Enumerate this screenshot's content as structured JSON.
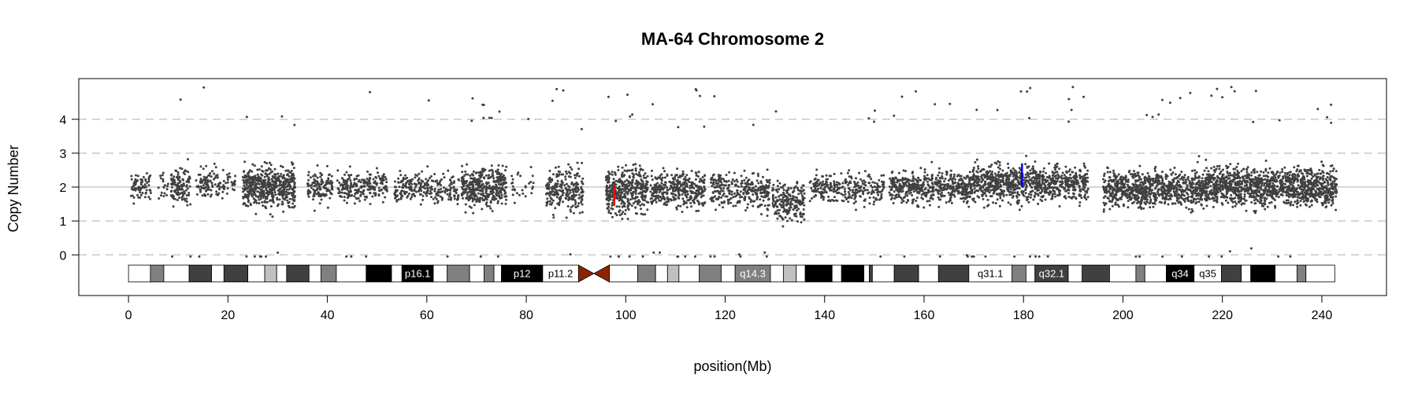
{
  "chart_data": {
    "type": "scatter",
    "title": "MA-64  Chromosome 2",
    "xlabel": "position(Mb)",
    "ylabel": "Copy Number",
    "xlim": [
      -10,
      253
    ],
    "ylim": [
      -1.2,
      5.2
    ],
    "xticks": [
      "0",
      "20",
      "40",
      "60",
      "80",
      "100",
      "120",
      "140",
      "160",
      "180",
      "200",
      "220",
      "240"
    ],
    "yticks": [
      "0",
      "1",
      "2",
      "3",
      "4"
    ],
    "grid": {
      "dashed_lines_at": [
        0,
        1,
        3,
        4
      ],
      "solid_line_at": 2
    },
    "point_color": "#404040",
    "baseline_copy_number": 2,
    "segments": [
      {
        "start": 0.5,
        "end": 4.5,
        "center": 2.0,
        "spread": 0.35,
        "density": 0.6
      },
      {
        "start": 6,
        "end": 8,
        "center": 2.1,
        "spread": 0.4,
        "density": 0.3
      },
      {
        "start": 8.5,
        "end": 12.5,
        "center": 2.0,
        "spread": 0.4,
        "density": 1.0
      },
      {
        "start": 13.5,
        "end": 21.5,
        "center": 2.1,
        "spread": 0.35,
        "density": 0.5
      },
      {
        "start": 23,
        "end": 33.5,
        "center": 2.0,
        "spread": 0.55,
        "density": 1.6
      },
      {
        "start": 36,
        "end": 41,
        "center": 2.0,
        "spread": 0.4,
        "density": 0.8
      },
      {
        "start": 42,
        "end": 52,
        "center": 2.0,
        "spread": 0.35,
        "density": 0.7
      },
      {
        "start": 53.5,
        "end": 66.5,
        "center": 1.95,
        "spread": 0.4,
        "density": 0.6
      },
      {
        "start": 67,
        "end": 76,
        "center": 2.0,
        "spread": 0.5,
        "density": 1.4
      },
      {
        "start": 77,
        "end": 81.5,
        "center": 2.0,
        "spread": 0.4,
        "density": 0.2
      },
      {
        "start": 84,
        "end": 91.5,
        "center": 1.9,
        "spread": 0.55,
        "density": 1.0
      },
      {
        "start": 96,
        "end": 104.5,
        "center": 1.9,
        "spread": 0.6,
        "density": 1.5
      },
      {
        "start": 105,
        "end": 116,
        "center": 1.9,
        "spread": 0.45,
        "density": 1.1
      },
      {
        "start": 117,
        "end": 129,
        "center": 1.9,
        "spread": 0.5,
        "density": 0.8
      },
      {
        "start": 129.5,
        "end": 136,
        "center": 1.6,
        "spread": 0.5,
        "density": 1.0
      },
      {
        "start": 137,
        "end": 152,
        "center": 1.95,
        "spread": 0.4,
        "density": 0.6
      },
      {
        "start": 153,
        "end": 170,
        "center": 2.0,
        "spread": 0.4,
        "density": 1.0
      },
      {
        "start": 170,
        "end": 193,
        "center": 2.1,
        "spread": 0.45,
        "density": 1.2
      },
      {
        "start": 196,
        "end": 215,
        "center": 1.95,
        "spread": 0.45,
        "density": 1.3
      },
      {
        "start": 215,
        "end": 243,
        "center": 2.0,
        "spread": 0.5,
        "density": 1.5
      }
    ],
    "markers": [
      {
        "x": 97.7,
        "y_from": 1.45,
        "y_to": 2.05,
        "color": "#ff0000"
      },
      {
        "x": 179.7,
        "y_from": 2.0,
        "y_to": 2.7,
        "color": "#0000ff"
      }
    ],
    "ideogram": {
      "y_top": -0.3,
      "y_bottom": -0.8,
      "centromere": {
        "start": 90.5,
        "end": 96.7,
        "color": "#8b2500"
      },
      "bands": [
        {
          "start": 0,
          "end": 4.4,
          "fill": "#ffffff",
          "label": ""
        },
        {
          "start": 4.4,
          "end": 7.1,
          "fill": "#808080",
          "label": ""
        },
        {
          "start": 7.1,
          "end": 12.2,
          "fill": "#ffffff",
          "label": ""
        },
        {
          "start": 12.2,
          "end": 16.7,
          "fill": "#404040",
          "label": ""
        },
        {
          "start": 16.7,
          "end": 19.2,
          "fill": "#ffffff",
          "label": ""
        },
        {
          "start": 19.2,
          "end": 24.0,
          "fill": "#404040",
          "label": ""
        },
        {
          "start": 24.0,
          "end": 27.4,
          "fill": "#ffffff",
          "label": ""
        },
        {
          "start": 27.4,
          "end": 29.8,
          "fill": "#c0c0c0",
          "label": ""
        },
        {
          "start": 29.8,
          "end": 31.8,
          "fill": "#ffffff",
          "label": ""
        },
        {
          "start": 31.8,
          "end": 36.3,
          "fill": "#404040",
          "label": ""
        },
        {
          "start": 36.3,
          "end": 38.7,
          "fill": "#ffffff",
          "label": ""
        },
        {
          "start": 38.7,
          "end": 41.8,
          "fill": "#808080",
          "label": ""
        },
        {
          "start": 41.8,
          "end": 47.8,
          "fill": "#ffffff",
          "label": ""
        },
        {
          "start": 47.8,
          "end": 52.9,
          "fill": "#000000",
          "label": ""
        },
        {
          "start": 52.9,
          "end": 55.0,
          "fill": "#ffffff",
          "label": ""
        },
        {
          "start": 55.0,
          "end": 61.3,
          "fill": "#000000",
          "label": "p16.1"
        },
        {
          "start": 61.3,
          "end": 64.1,
          "fill": "#ffffff",
          "label": ""
        },
        {
          "start": 64.1,
          "end": 68.6,
          "fill": "#808080",
          "label": ""
        },
        {
          "start": 68.6,
          "end": 71.5,
          "fill": "#ffffff",
          "label": ""
        },
        {
          "start": 71.5,
          "end": 73.5,
          "fill": "#808080",
          "label": ""
        },
        {
          "start": 73.5,
          "end": 75.0,
          "fill": "#ffffff",
          "label": ""
        },
        {
          "start": 75.0,
          "end": 83.3,
          "fill": "#000000",
          "label": "p12"
        },
        {
          "start": 83.3,
          "end": 90.5,
          "fill": "#ffffff",
          "label": "p11.2"
        },
        {
          "start": 96.7,
          "end": 102.4,
          "fill": "#ffffff",
          "label": ""
        },
        {
          "start": 102.4,
          "end": 106.0,
          "fill": "#808080",
          "label": ""
        },
        {
          "start": 106.0,
          "end": 108.4,
          "fill": "#ffffff",
          "label": ""
        },
        {
          "start": 108.4,
          "end": 110.7,
          "fill": "#c0c0c0",
          "label": ""
        },
        {
          "start": 110.7,
          "end": 114.8,
          "fill": "#ffffff",
          "label": ""
        },
        {
          "start": 114.8,
          "end": 119.2,
          "fill": "#808080",
          "label": ""
        },
        {
          "start": 119.2,
          "end": 122.0,
          "fill": "#ffffff",
          "label": ""
        },
        {
          "start": 122.0,
          "end": 129.1,
          "fill": "#808080",
          "label": "q14.3"
        },
        {
          "start": 129.1,
          "end": 131.7,
          "fill": "#ffffff",
          "label": ""
        },
        {
          "start": 131.7,
          "end": 134.3,
          "fill": "#c0c0c0",
          "label": ""
        },
        {
          "start": 134.3,
          "end": 136.1,
          "fill": "#ffffff",
          "label": ""
        },
        {
          "start": 136.1,
          "end": 141.5,
          "fill": "#000000",
          "label": ""
        },
        {
          "start": 141.5,
          "end": 143.4,
          "fill": "#ffffff",
          "label": ""
        },
        {
          "start": 143.4,
          "end": 147.9,
          "fill": "#000000",
          "label": ""
        },
        {
          "start": 147.9,
          "end": 149.0,
          "fill": "#ffffff",
          "label": ""
        },
        {
          "start": 149.0,
          "end": 149.6,
          "fill": "#404040",
          "label": ""
        },
        {
          "start": 149.6,
          "end": 154.0,
          "fill": "#ffffff",
          "label": ""
        },
        {
          "start": 154.0,
          "end": 158.9,
          "fill": "#404040",
          "label": ""
        },
        {
          "start": 158.9,
          "end": 162.9,
          "fill": "#ffffff",
          "label": ""
        },
        {
          "start": 162.9,
          "end": 169.0,
          "fill": "#404040",
          "label": ""
        },
        {
          "start": 169.0,
          "end": 177.7,
          "fill": "#ffffff",
          "label": "q31.1"
        },
        {
          "start": 177.7,
          "end": 180.5,
          "fill": "#808080",
          "label": ""
        },
        {
          "start": 180.5,
          "end": 182.3,
          "fill": "#ffffff",
          "label": ""
        },
        {
          "start": 182.3,
          "end": 189.0,
          "fill": "#404040",
          "label": "q32.1"
        },
        {
          "start": 189.0,
          "end": 191.8,
          "fill": "#ffffff",
          "label": ""
        },
        {
          "start": 191.8,
          "end": 197.3,
          "fill": "#404040",
          "label": ""
        },
        {
          "start": 197.3,
          "end": 202.6,
          "fill": "#ffffff",
          "label": ""
        },
        {
          "start": 202.6,
          "end": 204.4,
          "fill": "#808080",
          "label": ""
        },
        {
          "start": 204.4,
          "end": 208.7,
          "fill": "#ffffff",
          "label": ""
        },
        {
          "start": 208.7,
          "end": 214.3,
          "fill": "#000000",
          "label": "q34"
        },
        {
          "start": 214.3,
          "end": 219.8,
          "fill": "#ffffff",
          "label": "q35"
        },
        {
          "start": 219.8,
          "end": 223.8,
          "fill": "#404040",
          "label": ""
        },
        {
          "start": 223.8,
          "end": 225.7,
          "fill": "#ffffff",
          "label": ""
        },
        {
          "start": 225.7,
          "end": 230.6,
          "fill": "#000000",
          "label": ""
        },
        {
          "start": 230.6,
          "end": 235.0,
          "fill": "#ffffff",
          "label": ""
        },
        {
          "start": 235.0,
          "end": 236.8,
          "fill": "#808080",
          "label": ""
        },
        {
          "start": 236.8,
          "end": 242.6,
          "fill": "#ffffff",
          "label": ""
        }
      ]
    }
  }
}
